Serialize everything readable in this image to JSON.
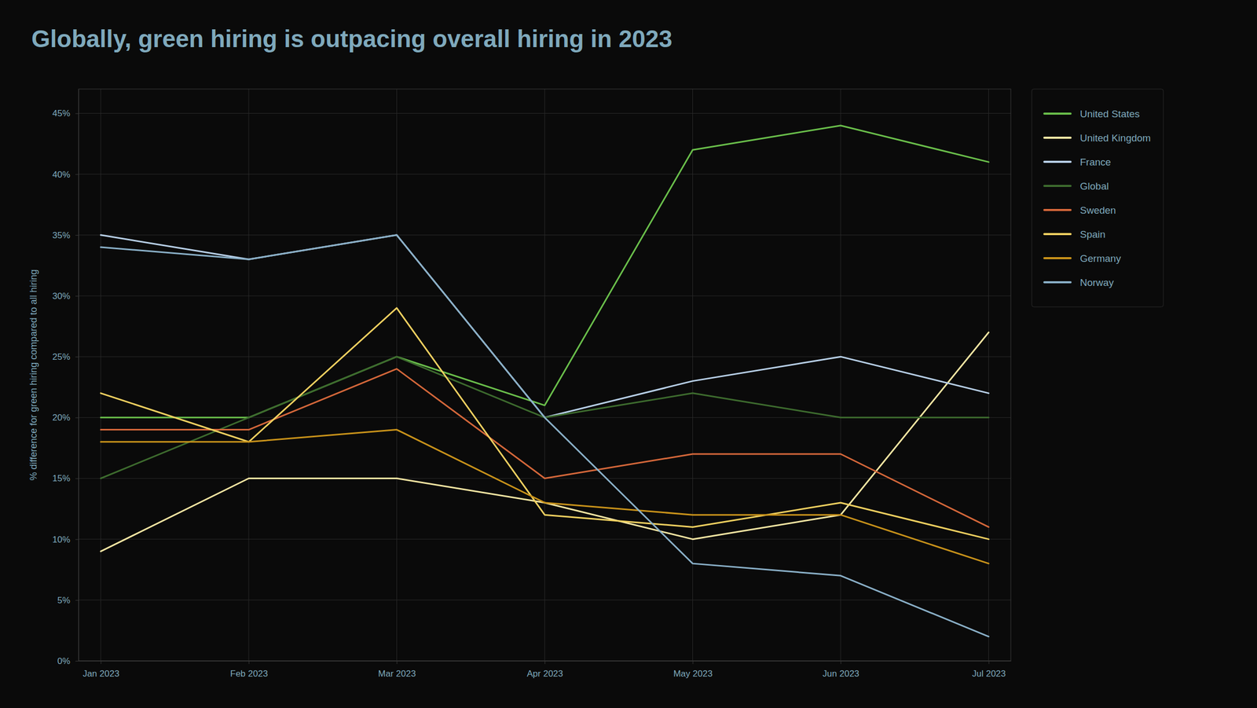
{
  "chart_data": {
    "type": "line",
    "title": "Globally, green hiring is outpacing overall hiring in 2023",
    "ylabel": "% difference for green hiring compared to all hiring",
    "categories": [
      "Jan 2023",
      "Feb 2023",
      "Mar 2023",
      "Apr 2023",
      "May 2023",
      "Jun 2023",
      "Jul 2023"
    ],
    "series": [
      {
        "name": "United States",
        "color": "#6abf4b",
        "values": [
          20,
          20,
          25,
          21,
          42,
          44,
          41
        ]
      },
      {
        "name": "United Kingdom",
        "color": "#f5e6a3",
        "values": [
          9,
          15,
          15,
          13,
          10,
          12,
          27
        ]
      },
      {
        "name": "France",
        "color": "#b8d0e8",
        "values": [
          35,
          33,
          35,
          20,
          23,
          25,
          22
        ]
      },
      {
        "name": "Global",
        "color": "#3d6b2e",
        "values": [
          15,
          20,
          25,
          20,
          22,
          20,
          20
        ]
      },
      {
        "name": "Sweden",
        "color": "#d4673a",
        "values": [
          19,
          19,
          24,
          15,
          17,
          17,
          11
        ]
      },
      {
        "name": "Spain",
        "color": "#f0d060",
        "values": [
          22,
          18,
          29,
          12,
          11,
          13,
          10
        ]
      },
      {
        "name": "Germany",
        "color": "#c8921a",
        "values": [
          18,
          18,
          19,
          13,
          12,
          12,
          8
        ]
      },
      {
        "name": "Norway",
        "color": "#8ab0c8",
        "values": [
          34,
          33,
          35,
          20,
          8,
          7,
          2
        ]
      }
    ],
    "ylim": [
      0,
      47
    ],
    "yticks": [
      {
        "value": 0,
        "label": "0%"
      },
      {
        "value": 5,
        "label": "5%"
      },
      {
        "value": 10,
        "label": "10%"
      },
      {
        "value": 15,
        "label": "15%"
      },
      {
        "value": 20,
        "label": "20%"
      },
      {
        "value": 25,
        "label": "25%"
      },
      {
        "value": 30,
        "label": "30%"
      },
      {
        "value": 35,
        "label": "35%"
      },
      {
        "value": 40,
        "label": "40%"
      },
      {
        "value": 45,
        "label": "45%"
      }
    ],
    "grid": true,
    "legend": "upper right"
  }
}
